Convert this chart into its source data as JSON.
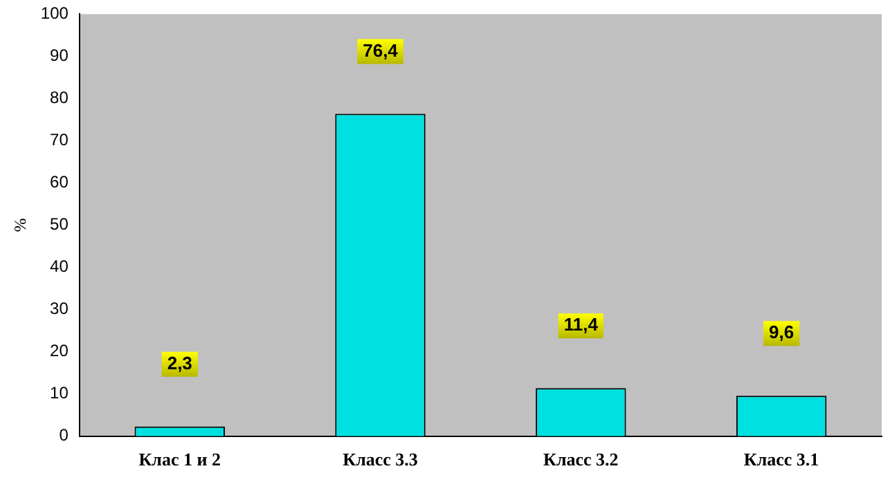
{
  "chart_data": {
    "type": "bar",
    "ylabel": "%",
    "categories": [
      "Клас 1 и 2",
      "Класс 3.3",
      "Класс 3.2",
      "Класс 3.1"
    ],
    "values": [
      2.3,
      76.4,
      11.4,
      9.6
    ],
    "value_labels": [
      "2,3",
      "76,4",
      "11,4",
      "9,6"
    ],
    "color": "#00e0e0",
    "ylim": [
      0,
      100
    ],
    "yticks": [
      0,
      10,
      20,
      30,
      40,
      50,
      60,
      70,
      80,
      90,
      100
    ],
    "grid": false,
    "legend": false
  }
}
